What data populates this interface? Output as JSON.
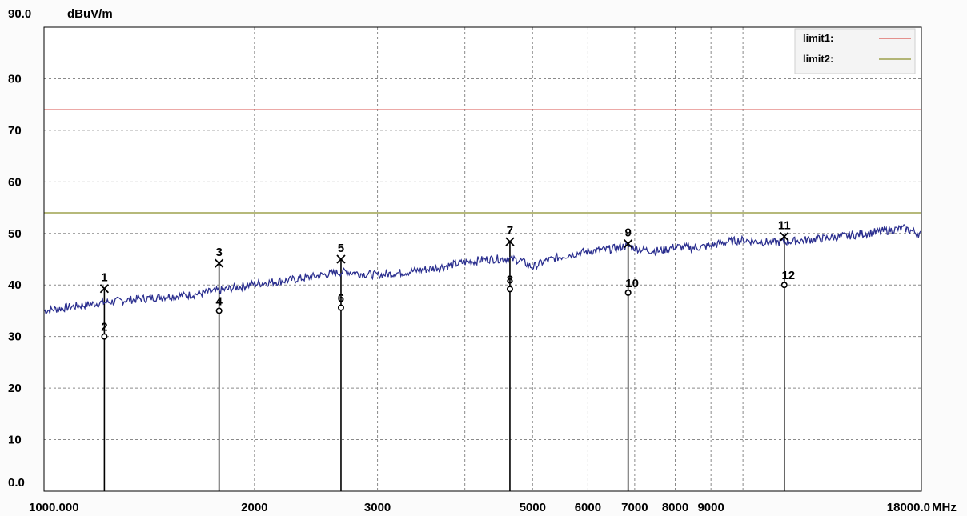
{
  "chart_data": {
    "type": "line",
    "ylabel": "dBuV/m",
    "xunit": "MHz",
    "xscale": "log",
    "ylim": [
      0,
      90
    ],
    "xlim": [
      1000,
      18000
    ],
    "y_ticks": [
      {
        "value": 0,
        "label": "0.0"
      },
      {
        "value": 10,
        "label": "10"
      },
      {
        "value": 20,
        "label": "20"
      },
      {
        "value": 30,
        "label": "30"
      },
      {
        "value": 40,
        "label": "40"
      },
      {
        "value": 50,
        "label": "50"
      },
      {
        "value": 60,
        "label": "60"
      },
      {
        "value": 70,
        "label": "70"
      },
      {
        "value": 80,
        "label": "80"
      },
      {
        "value": 90,
        "label": "90.0"
      }
    ],
    "x_ticks": [
      {
        "value": 1000,
        "label": "1000.000"
      },
      {
        "value": 2000,
        "label": "2000"
      },
      {
        "value": 3000,
        "label": "3000"
      },
      {
        "value": 5000,
        "label": "5000"
      },
      {
        "value": 6000,
        "label": "6000"
      },
      {
        "value": 7000,
        "label": "7000"
      },
      {
        "value": 8000,
        "label": "8000"
      },
      {
        "value": 9000,
        "label": "9000"
      },
      {
        "value": 18000,
        "label": "18000.0"
      }
    ],
    "x_gridlines": [
      1000,
      2000,
      3000,
      4000,
      5000,
      6000,
      7000,
      8000,
      9000,
      10000,
      18000
    ],
    "limits": [
      {
        "name": "limit1:",
        "value": 74,
        "color": "#d9534f"
      },
      {
        "name": "limit2:",
        "value": 54,
        "color": "#8a8f2a"
      }
    ],
    "trace": {
      "color": "#2b2f8f",
      "points": [
        [
          1000,
          35.0
        ],
        [
          1100,
          35.8
        ],
        [
          1200,
          36.5
        ],
        [
          1300,
          37.0
        ],
        [
          1400,
          37.4
        ],
        [
          1500,
          37.8
        ],
        [
          1600,
          38.0
        ],
        [
          1700,
          38.5
        ],
        [
          1800,
          39.0
        ],
        [
          1900,
          39.6
        ],
        [
          2000,
          40.2
        ],
        [
          2200,
          40.8
        ],
        [
          2400,
          41.5
        ],
        [
          2600,
          42.3
        ],
        [
          2700,
          42.6
        ],
        [
          2800,
          42.3
        ],
        [
          3000,
          41.9
        ],
        [
          3300,
          42.5
        ],
        [
          3600,
          43.2
        ],
        [
          4000,
          44.4
        ],
        [
          4300,
          45.0
        ],
        [
          4600,
          45.1
        ],
        [
          4800,
          44.8
        ],
        [
          5000,
          43.4
        ],
        [
          5200,
          44.6
        ],
        [
          5600,
          45.8
        ],
        [
          6000,
          46.5
        ],
        [
          6500,
          47.0
        ],
        [
          6800,
          47.6
        ],
        [
          7200,
          46.8
        ],
        [
          7600,
          46.6
        ],
        [
          8000,
          47.4
        ],
        [
          8500,
          47.2
        ],
        [
          9000,
          47.6
        ],
        [
          9500,
          48.4
        ],
        [
          10000,
          48.7
        ],
        [
          11000,
          48.2
        ],
        [
          12000,
          48.6
        ],
        [
          13000,
          49.0
        ],
        [
          14000,
          49.5
        ],
        [
          15000,
          50.0
        ],
        [
          16000,
          50.5
        ],
        [
          17000,
          51.0
        ],
        [
          18000,
          49.8
        ]
      ]
    },
    "markers": [
      {
        "label": "1",
        "freq": 1220,
        "level": 39.3,
        "symbol": "x"
      },
      {
        "label": "2",
        "freq": 1220,
        "level": 30.0,
        "symbol": "o"
      },
      {
        "label": "3",
        "freq": 1780,
        "level": 44.2,
        "symbol": "x"
      },
      {
        "label": "4",
        "freq": 1780,
        "level": 35.0,
        "symbol": "o"
      },
      {
        "label": "5",
        "freq": 2660,
        "level": 45.0,
        "symbol": "x"
      },
      {
        "label": "6",
        "freq": 2660,
        "level": 35.6,
        "symbol": "o"
      },
      {
        "label": "7",
        "freq": 4640,
        "level": 48.4,
        "symbol": "x"
      },
      {
        "label": "8",
        "freq": 4640,
        "level": 39.2,
        "symbol": "o"
      },
      {
        "label": "9",
        "freq": 6850,
        "level": 48.0,
        "symbol": "x"
      },
      {
        "label": "10",
        "freq": 6850,
        "level": 38.5,
        "symbol": "o"
      },
      {
        "label": "11",
        "freq": 11460,
        "level": 49.4,
        "symbol": "x"
      },
      {
        "label": "12",
        "freq": 11460,
        "level": 40.0,
        "symbol": "o"
      }
    ]
  }
}
